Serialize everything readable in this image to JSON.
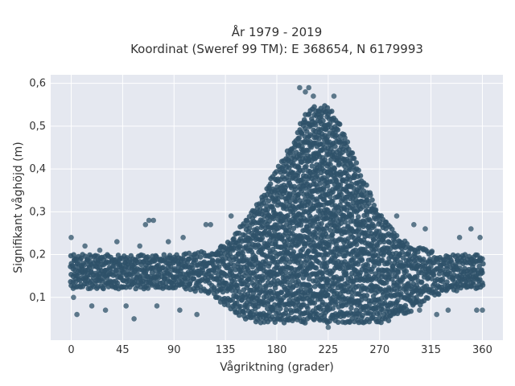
{
  "chart_data": {
    "type": "scatter",
    "title_line1": "År 1979 - 2019",
    "title_line2": "Koordinat (Sweref 99 TM): E 368654, N 6179993",
    "xlabel": "Vågriktning (grader)",
    "ylabel": "Signifikant våghöjd (m)",
    "xlim": [
      -18,
      378
    ],
    "ylim": [
      0,
      0.62
    ],
    "x_ticks": [
      0,
      45,
      90,
      135,
      180,
      225,
      270,
      315,
      360
    ],
    "x_tick_labels": [
      "0",
      "45",
      "90",
      "135",
      "180",
      "225",
      "270",
      "315",
      "360"
    ],
    "y_ticks": [
      0.1,
      0.2,
      0.3,
      0.4,
      0.5,
      0.6
    ],
    "y_tick_labels": [
      "0,1",
      "0,2",
      "0,3",
      "0,4",
      "0,5",
      "0,6"
    ],
    "grid": true,
    "colors": {
      "plot_bg": "#e5e8f0",
      "grid": "#ffffff",
      "marker": "#2e5168"
    },
    "envelope": {
      "x": [
        0,
        45,
        90,
        120,
        135,
        150,
        165,
        180,
        195,
        205,
        215,
        225,
        235,
        245,
        255,
        270,
        285,
        300,
        315,
        330,
        345,
        360
      ],
      "y_upper": [
        0.2,
        0.2,
        0.2,
        0.21,
        0.23,
        0.27,
        0.33,
        0.4,
        0.47,
        0.53,
        0.55,
        0.55,
        0.51,
        0.45,
        0.38,
        0.3,
        0.25,
        0.22,
        0.21,
        0.2,
        0.2,
        0.2
      ],
      "y_lower": [
        0.12,
        0.12,
        0.12,
        0.11,
        0.08,
        0.05,
        0.04,
        0.04,
        0.04,
        0.04,
        0.04,
        0.04,
        0.04,
        0.04,
        0.04,
        0.04,
        0.05,
        0.07,
        0.1,
        0.11,
        0.12,
        0.12
      ]
    },
    "outliers": [
      {
        "x": 0,
        "y": 0.24
      },
      {
        "x": 2,
        "y": 0.1
      },
      {
        "x": 5,
        "y": 0.06
      },
      {
        "x": 12,
        "y": 0.22
      },
      {
        "x": 18,
        "y": 0.08
      },
      {
        "x": 25,
        "y": 0.21
      },
      {
        "x": 30,
        "y": 0.07
      },
      {
        "x": 40,
        "y": 0.23
      },
      {
        "x": 48,
        "y": 0.08
      },
      {
        "x": 55,
        "y": 0.05
      },
      {
        "x": 60,
        "y": 0.22
      },
      {
        "x": 65,
        "y": 0.27
      },
      {
        "x": 68,
        "y": 0.28
      },
      {
        "x": 72,
        "y": 0.28
      },
      {
        "x": 75,
        "y": 0.08
      },
      {
        "x": 85,
        "y": 0.23
      },
      {
        "x": 95,
        "y": 0.07
      },
      {
        "x": 98,
        "y": 0.24
      },
      {
        "x": 110,
        "y": 0.06
      },
      {
        "x": 118,
        "y": 0.27
      },
      {
        "x": 122,
        "y": 0.27
      },
      {
        "x": 140,
        "y": 0.29
      },
      {
        "x": 200,
        "y": 0.59
      },
      {
        "x": 205,
        "y": 0.58
      },
      {
        "x": 208,
        "y": 0.59
      },
      {
        "x": 212,
        "y": 0.57
      },
      {
        "x": 225,
        "y": 0.03
      },
      {
        "x": 230,
        "y": 0.57
      },
      {
        "x": 285,
        "y": 0.29
      },
      {
        "x": 300,
        "y": 0.27
      },
      {
        "x": 305,
        "y": 0.07
      },
      {
        "x": 310,
        "y": 0.26
      },
      {
        "x": 320,
        "y": 0.06
      },
      {
        "x": 330,
        "y": 0.07
      },
      {
        "x": 340,
        "y": 0.24
      },
      {
        "x": 350,
        "y": 0.26
      },
      {
        "x": 355,
        "y": 0.07
      },
      {
        "x": 358,
        "y": 0.24
      },
      {
        "x": 360,
        "y": 0.07
      }
    ]
  }
}
